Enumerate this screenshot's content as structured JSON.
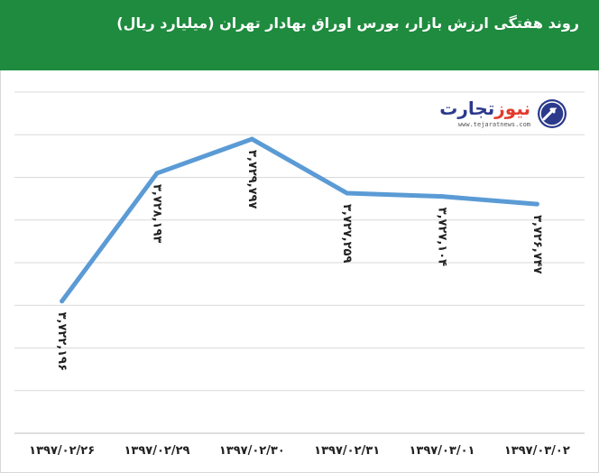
{
  "header": {
    "title": "روند هفتگی ارزش بازار، بورس اوراق بهادار تهران (میلیارد ریال)"
  },
  "logo": {
    "name_part1": "تجارت",
    "name_part2": "نیوز",
    "url": "www.tejaratnews.com",
    "icon": "globe-arrow-icon"
  },
  "colors": {
    "header": "#1e8b3e",
    "line": "#5b9bd5",
    "grid": "#d9d9d9"
  },
  "chart_data": {
    "type": "line",
    "title": "روند هفتگی ارزش بازار، بورس اوراق بهادار تهران (میلیارد ریال)",
    "categories": [
      "۱۳۹۷/۰۲/۲۶",
      "۱۳۹۷/۰۲/۲۹",
      "۱۳۹۷/۰۲/۳۰",
      "۱۳۹۷/۰۲/۳۱",
      "۱۳۹۷/۰۳/۰۱",
      "۱۳۹۷/۰۳/۰۲"
    ],
    "values": [
      3722196,
      3728193,
      3729797,
      3727259,
      3727104,
      3726747
    ],
    "data_labels": [
      "۳,۷۲۲,۱۹۶",
      "۳,۷۲۸,۱۹۳",
      "۳,۷۲۹,۷۹۷",
      "۳,۷۲۷,۲۵۹",
      "۳,۷۲۷,۱۰۴",
      "۳,۷۲۶,۷۴۷"
    ],
    "ylim": [
      3716000,
      3732000
    ],
    "grid": true,
    "legend": "none"
  }
}
